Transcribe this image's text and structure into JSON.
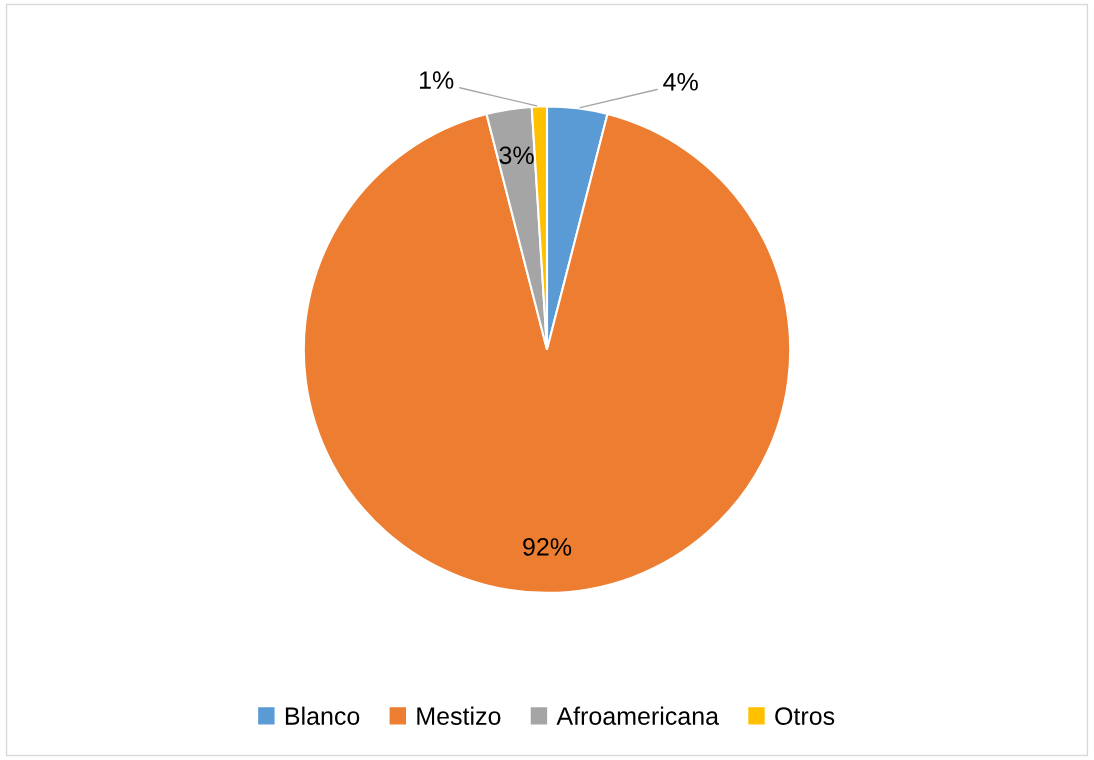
{
  "chart_data": {
    "type": "pie",
    "categories": [
      "Blanco",
      "Mestizo",
      "Afroamericana",
      "Otros"
    ],
    "values": [
      4,
      92,
      3,
      1
    ],
    "colors": [
      "#5b9bd5",
      "#ed7d31",
      "#a5a5a5",
      "#ffc000"
    ],
    "value_labels": [
      "4%",
      "92%",
      "3%",
      "1%"
    ],
    "legend": "bottom"
  }
}
